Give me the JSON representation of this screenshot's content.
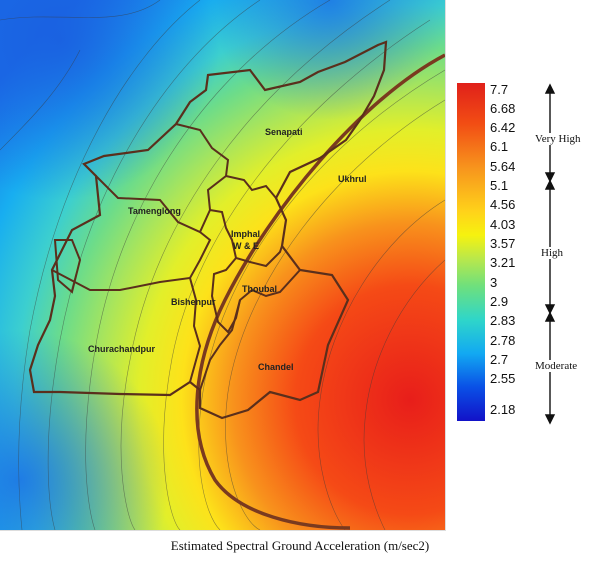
{
  "map": {
    "districts": {
      "senapati": "Senapati",
      "ukhrul": "Ukhrul",
      "tamenglong": "Tamenglong",
      "imphal_line1": "Imphal",
      "imphal_line2": "W & E",
      "bishenpur": "Bishenpur",
      "thoubal": "Thoubal",
      "churachandpur": "Churachandpur",
      "chandel": "Chandel"
    }
  },
  "legend": {
    "values": [
      "7.7",
      "6.68",
      "6.42",
      "6.1",
      "5.64",
      "5.1",
      "4.56",
      "4.03",
      "3.57",
      "3.21",
      "3",
      "2.9",
      "2.83",
      "2.78",
      "2.7",
      "2.55",
      "2.18"
    ],
    "ranges": {
      "very_high": "Very High",
      "high": "High",
      "moderate": "Moderate"
    },
    "colors": [
      "#e0201a",
      "#f7941d",
      "#f6f20f",
      "#6fe07c",
      "#12a9f2",
      "#1212c8"
    ]
  },
  "caption": "Estimated Spectral Ground Acceleration (m/sec2)"
}
